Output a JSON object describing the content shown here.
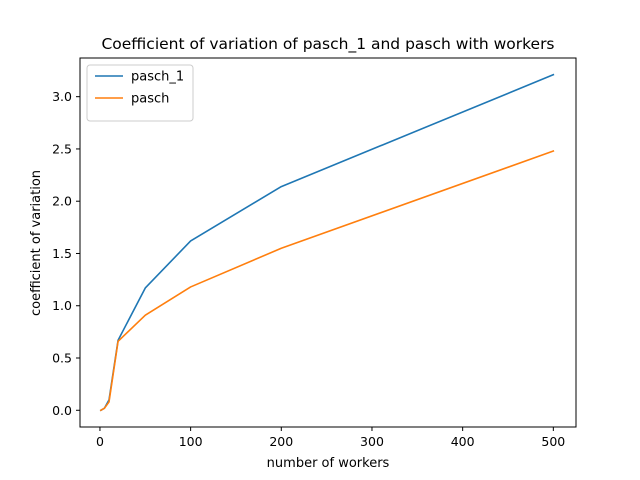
{
  "chart_data": {
    "type": "line",
    "title": "Coefficient of variation of pasch_1 and pasch with workers",
    "xlabel": "number of workers",
    "ylabel": "coefficient of variation",
    "xlim": [
      -22,
      525
    ],
    "ylim": [
      -0.16,
      3.37
    ],
    "xticks": [
      0,
      100,
      200,
      300,
      400,
      500
    ],
    "xtick_labels": [
      "0",
      "100",
      "200",
      "300",
      "400",
      "500"
    ],
    "yticks": [
      0.0,
      0.5,
      1.0,
      1.5,
      2.0,
      2.5,
      3.0
    ],
    "ytick_labels": [
      "0.0",
      "0.5",
      "1.0",
      "1.5",
      "2.0",
      "2.5",
      "3.0"
    ],
    "grid": false,
    "legend_position": "upper-left",
    "series": [
      {
        "name": "pasch_1",
        "color": "#1f77b4",
        "x": [
          1,
          5,
          10,
          20,
          50,
          100,
          200,
          500
        ],
        "y": [
          0.0,
          0.02,
          0.1,
          0.67,
          1.17,
          1.62,
          2.14,
          3.21
        ]
      },
      {
        "name": "pasch",
        "color": "#ff7f0e",
        "x": [
          1,
          5,
          10,
          20,
          50,
          100,
          200,
          500
        ],
        "y": [
          0.0,
          0.02,
          0.08,
          0.66,
          0.91,
          1.18,
          1.55,
          2.48
        ]
      }
    ]
  }
}
